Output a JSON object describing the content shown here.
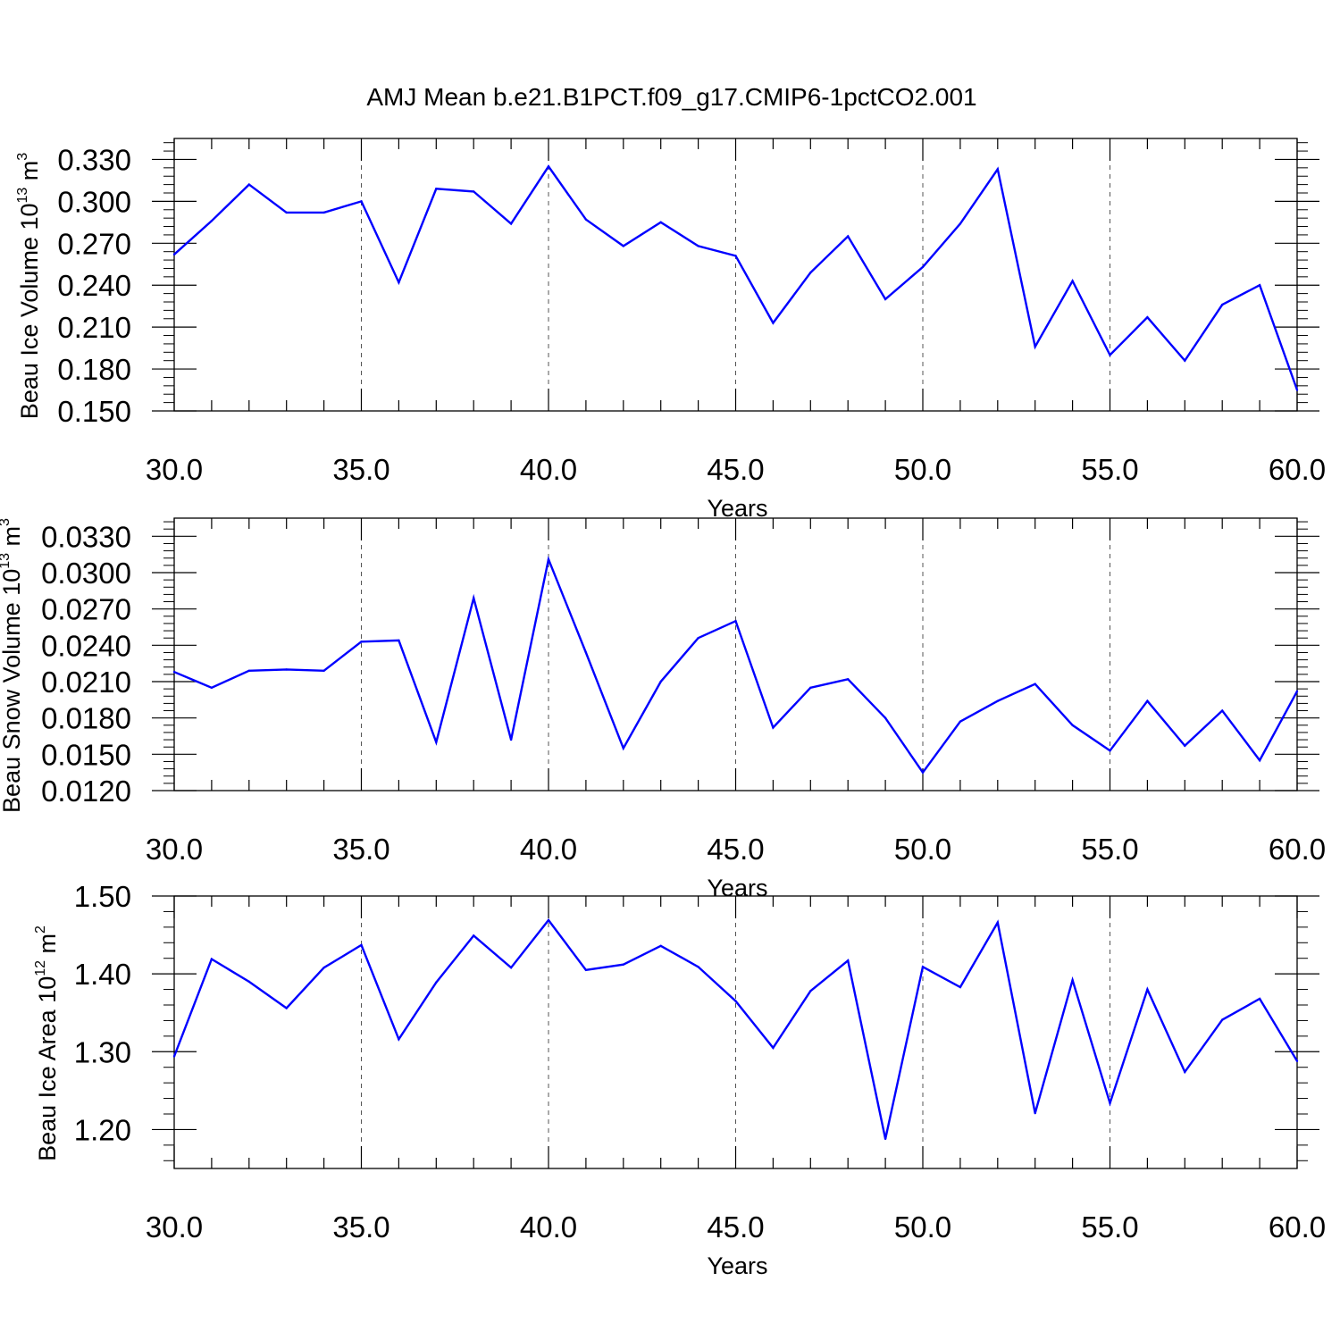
{
  "title": "AMJ Mean b.e21.B1PCT.f09_g17.CMIP6-1pctCO2.001",
  "chart_data": [
    {
      "type": "line",
      "title": "AMJ Mean b.e21.B1PCT.f09_g17.CMIP6-1pctCO2.001",
      "xlabel": "Years",
      "ylabel_main": "Beau Ice Volume 10",
      "ylabel_exp": "13",
      "ylabel_unit": " m",
      "ylabel_unit_exp": "3",
      "xlim": [
        30,
        60
      ],
      "ylim": [
        0.15,
        0.345
      ],
      "yticks": [
        0.15,
        0.18,
        0.21,
        0.24,
        0.27,
        0.3,
        0.33
      ],
      "ytick_labels": [
        "0.150",
        "0.180",
        "0.210",
        "0.240",
        "0.270",
        "0.300",
        "0.330"
      ],
      "xticks": [
        30,
        35,
        40,
        45,
        50,
        55,
        60
      ],
      "xtick_labels": [
        "30.0",
        "35.0",
        "40.0",
        "45.0",
        "50.0",
        "55.0",
        "60.0"
      ],
      "grid": "vertical dashed at major x ticks",
      "color": "#0000ff",
      "x": [
        30,
        31,
        32,
        33,
        34,
        35,
        36,
        37,
        38,
        39,
        40,
        41,
        42,
        43,
        44,
        45,
        46,
        47,
        48,
        49,
        50,
        51,
        52,
        53,
        54,
        55,
        56,
        57,
        58,
        59,
        60
      ],
      "values": [
        0.262,
        0.286,
        0.312,
        0.292,
        0.292,
        0.3,
        0.242,
        0.309,
        0.307,
        0.284,
        0.325,
        0.287,
        0.268,
        0.285,
        0.268,
        0.261,
        0.213,
        0.249,
        0.275,
        0.23,
        0.253,
        0.284,
        0.323,
        0.196,
        0.243,
        0.19,
        0.217,
        0.186,
        0.226,
        0.24,
        0.165
      ]
    },
    {
      "type": "line",
      "xlabel": "Years",
      "ylabel_main": "Beau Snow Volume 10",
      "ylabel_exp": "13",
      "ylabel_unit": " m",
      "ylabel_unit_exp": "3",
      "xlim": [
        30,
        60
      ],
      "ylim": [
        0.012,
        0.0345
      ],
      "yticks": [
        0.012,
        0.015,
        0.018,
        0.021,
        0.024,
        0.027,
        0.03,
        0.033
      ],
      "ytick_labels": [
        "0.0120",
        "0.0150",
        "0.0180",
        "0.0210",
        "0.0240",
        "0.0270",
        "0.0300",
        "0.0330"
      ],
      "xticks": [
        30,
        35,
        40,
        45,
        50,
        55,
        60
      ],
      "xtick_labels": [
        "30.0",
        "35.0",
        "40.0",
        "45.0",
        "50.0",
        "55.0",
        "60.0"
      ],
      "grid": "vertical dashed at major x ticks",
      "color": "#0000ff",
      "x": [
        30,
        31,
        32,
        33,
        34,
        35,
        36,
        37,
        38,
        39,
        40,
        41,
        42,
        43,
        44,
        45,
        46,
        47,
        48,
        49,
        50,
        51,
        52,
        53,
        54,
        55,
        56,
        57,
        58,
        59,
        60
      ],
      "values": [
        0.0218,
        0.0205,
        0.0219,
        0.022,
        0.0219,
        0.0243,
        0.0244,
        0.016,
        0.0279,
        0.0162,
        0.0311,
        0.0234,
        0.0155,
        0.021,
        0.0246,
        0.026,
        0.0172,
        0.0205,
        0.0212,
        0.018,
        0.0135,
        0.0177,
        0.0194,
        0.0208,
        0.0174,
        0.0153,
        0.0194,
        0.0157,
        0.0186,
        0.0145,
        0.0202
      ]
    },
    {
      "type": "line",
      "xlabel": "Years",
      "ylabel_main": "Beau Ice Area 10",
      "ylabel_exp": "12",
      "ylabel_unit": " m",
      "ylabel_unit_exp": "2",
      "xlim": [
        30,
        60
      ],
      "ylim": [
        1.15,
        1.5
      ],
      "yticks": [
        1.2,
        1.3,
        1.4,
        1.5
      ],
      "ytick_labels": [
        "1.20",
        "1.30",
        "1.40",
        "1.50"
      ],
      "xticks": [
        30,
        35,
        40,
        45,
        50,
        55,
        60
      ],
      "xtick_labels": [
        "30.0",
        "35.0",
        "40.0",
        "45.0",
        "50.0",
        "55.0",
        "60.0"
      ],
      "grid": "vertical dashed at major x ticks",
      "color": "#0000ff",
      "x": [
        30,
        31,
        32,
        33,
        34,
        35,
        36,
        37,
        38,
        39,
        40,
        41,
        42,
        43,
        44,
        45,
        46,
        47,
        48,
        49,
        50,
        51,
        52,
        53,
        54,
        55,
        56,
        57,
        58,
        59,
        60
      ],
      "values": [
        1.294,
        1.419,
        1.39,
        1.356,
        1.408,
        1.437,
        1.316,
        1.389,
        1.449,
        1.408,
        1.469,
        1.405,
        1.412,
        1.436,
        1.409,
        1.365,
        1.305,
        1.378,
        1.417,
        1.188,
        1.409,
        1.383,
        1.466,
        1.221,
        1.392,
        1.234,
        1.38,
        1.274,
        1.341,
        1.368,
        1.288
      ]
    }
  ]
}
